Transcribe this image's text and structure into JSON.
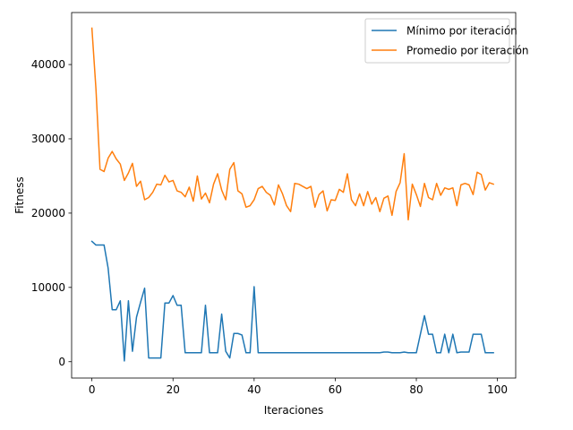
{
  "chart_data": {
    "type": "line",
    "title": "",
    "xlabel": "Iteraciones",
    "ylabel": "Fitness",
    "xlim": [
      -5,
      104.5
    ],
    "ylim": [
      -2200,
      47000
    ],
    "xticks": [
      0,
      20,
      40,
      60,
      80,
      100
    ],
    "yticks": [
      0,
      10000,
      20000,
      30000,
      40000
    ],
    "grid": false,
    "legend_position": "top-right",
    "series": [
      {
        "name": "Mínimo por iteración",
        "color": "#1f77b4",
        "values": [
          16200,
          15700,
          15700,
          15700,
          12600,
          7000,
          7000,
          8200,
          100,
          8200,
          1400,
          6000,
          8000,
          9900,
          500,
          500,
          500,
          500,
          7900,
          7900,
          8900,
          7600,
          7600,
          1200,
          1200,
          1200,
          1200,
          1200,
          7600,
          1200,
          1200,
          1200,
          6400,
          1400,
          500,
          3800,
          3800,
          3600,
          1200,
          1200,
          10100,
          1200,
          1200,
          1200,
          1200,
          1200,
          1200,
          1200,
          1200,
          1200,
          1200,
          1200,
          1200,
          1200,
          1200,
          1200,
          1200,
          1200,
          1200,
          1200,
          1200,
          1200,
          1200,
          1200,
          1200,
          1200,
          1200,
          1200,
          1200,
          1200,
          1200,
          1200,
          1300,
          1300,
          1200,
          1200,
          1200,
          1300,
          1200,
          1200,
          1200,
          3700,
          6200,
          3700,
          3700,
          1200,
          1200,
          3700,
          1200,
          3700,
          1200,
          1300,
          1300,
          1300,
          3700,
          3700,
          3700,
          1200,
          1200,
          1200
        ]
      },
      {
        "name": "Promedio por iteración",
        "color": "#ff7f0e",
        "values": [
          44900,
          36700,
          25900,
          25600,
          27400,
          28300,
          27300,
          26600,
          24400,
          25400,
          26700,
          23600,
          24300,
          21800,
          22100,
          22800,
          23900,
          23800,
          25100,
          24200,
          24400,
          23000,
          22800,
          22200,
          23500,
          21600,
          25000,
          21900,
          22700,
          21400,
          23900,
          25300,
          23100,
          21800,
          25900,
          26800,
          23000,
          22600,
          20800,
          21000,
          21800,
          23300,
          23600,
          22800,
          22400,
          21100,
          23800,
          22600,
          21000,
          20200,
          24000,
          23900,
          23600,
          23300,
          23600,
          20800,
          22500,
          23000,
          20300,
          21800,
          21700,
          23200,
          22800,
          25300,
          21800,
          21000,
          22600,
          21000,
          22900,
          21200,
          22100,
          20200,
          22000,
          22300,
          19700,
          22900,
          24100,
          28000,
          19100,
          23900,
          22500,
          20900,
          24000,
          22100,
          21800,
          24000,
          22400,
          23400,
          23200,
          23400,
          21000,
          23800,
          24000,
          23800,
          22500,
          25500,
          25200,
          23100,
          24100,
          23900
        ]
      }
    ]
  }
}
